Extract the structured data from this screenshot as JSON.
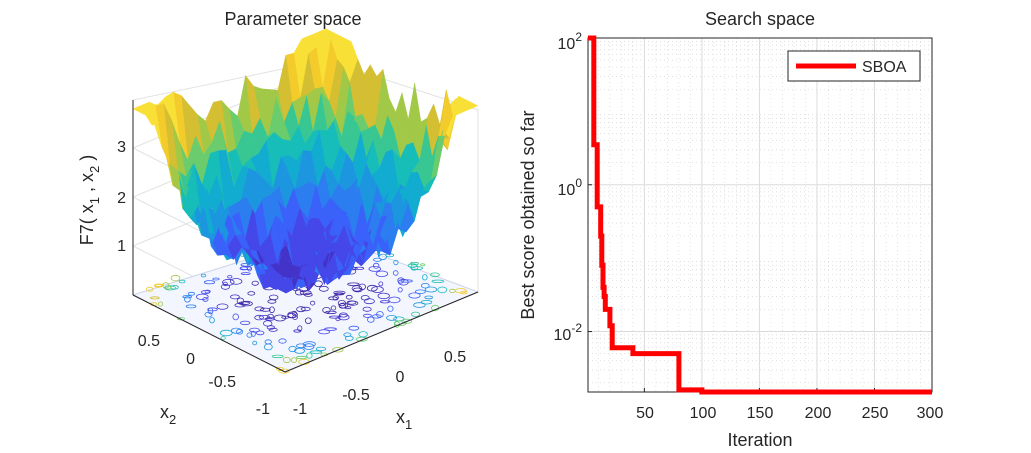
{
  "chart_data": [
    {
      "type": "surface3d",
      "title": "Parameter space",
      "function": "F7",
      "xlabel": "x_1",
      "ylabel": "x_2",
      "zlabel": "F7( x_1 , x_2 )",
      "xlabel_main": "x",
      "xlabel_sub": "1",
      "ylabel_main": "x",
      "ylabel_sub": "2",
      "zlabel_parts": {
        "prefix": "F7( x",
        "sub1": "1",
        "mid": " , x",
        "sub2": "2",
        "suffix": " )"
      },
      "xlim": [
        -1,
        1
      ],
      "ylim": [
        -1,
        1
      ],
      "zlim": [
        0,
        4
      ],
      "x_ticks": [
        -1,
        -0.5,
        0,
        0.5
      ],
      "x_tick_labels": [
        "-1",
        "-0.5",
        "0",
        "0.5"
      ],
      "y_ticks": [
        -1,
        -0.5,
        0,
        0.5
      ],
      "y_tick_labels": [
        "-1",
        "-0.5",
        "0",
        "0.5"
      ],
      "z_ticks": [
        1,
        2,
        3
      ],
      "z_tick_labels": [
        "1",
        "2",
        "3"
      ],
      "colormap": "parula",
      "grid": true,
      "contour_floor": true
    },
    {
      "type": "line",
      "title": "Search space",
      "xlabel": "Iteration",
      "ylabel": "Best score obtained so far",
      "yscale": "log",
      "xlim": [
        1,
        300
      ],
      "ylim": [
        0.0015,
        100
      ],
      "x_ticks": [
        50,
        100,
        150,
        200,
        250,
        300
      ],
      "x_tick_labels": [
        "50",
        "100",
        "150",
        "200",
        "250",
        "300"
      ],
      "y_ticks": [
        0.01,
        1,
        100
      ],
      "y_tick_labels": [
        {
          "base": "10",
          "exp": "-2"
        },
        {
          "base": "10",
          "exp": "0"
        },
        {
          "base": "10",
          "exp": "2"
        }
      ],
      "grid": true,
      "legend_position": "top-right",
      "series": [
        {
          "name": "SBOA",
          "color": "#ff0000",
          "x": [
            1,
            5,
            6,
            8,
            9,
            10,
            12,
            13,
            14,
            15,
            16,
            18,
            20,
            22,
            26,
            40,
            60,
            78,
            80,
            100,
            150,
            200,
            300
          ],
          "y": [
            100,
            100,
            3.5,
            3.5,
            0.5,
            0.5,
            0.2,
            0.08,
            0.04,
            0.03,
            0.02,
            0.02,
            0.012,
            0.006,
            0.006,
            0.005,
            0.005,
            0.005,
            0.0016,
            0.0015,
            0.0015,
            0.0015,
            0.0015
          ]
        }
      ]
    }
  ]
}
